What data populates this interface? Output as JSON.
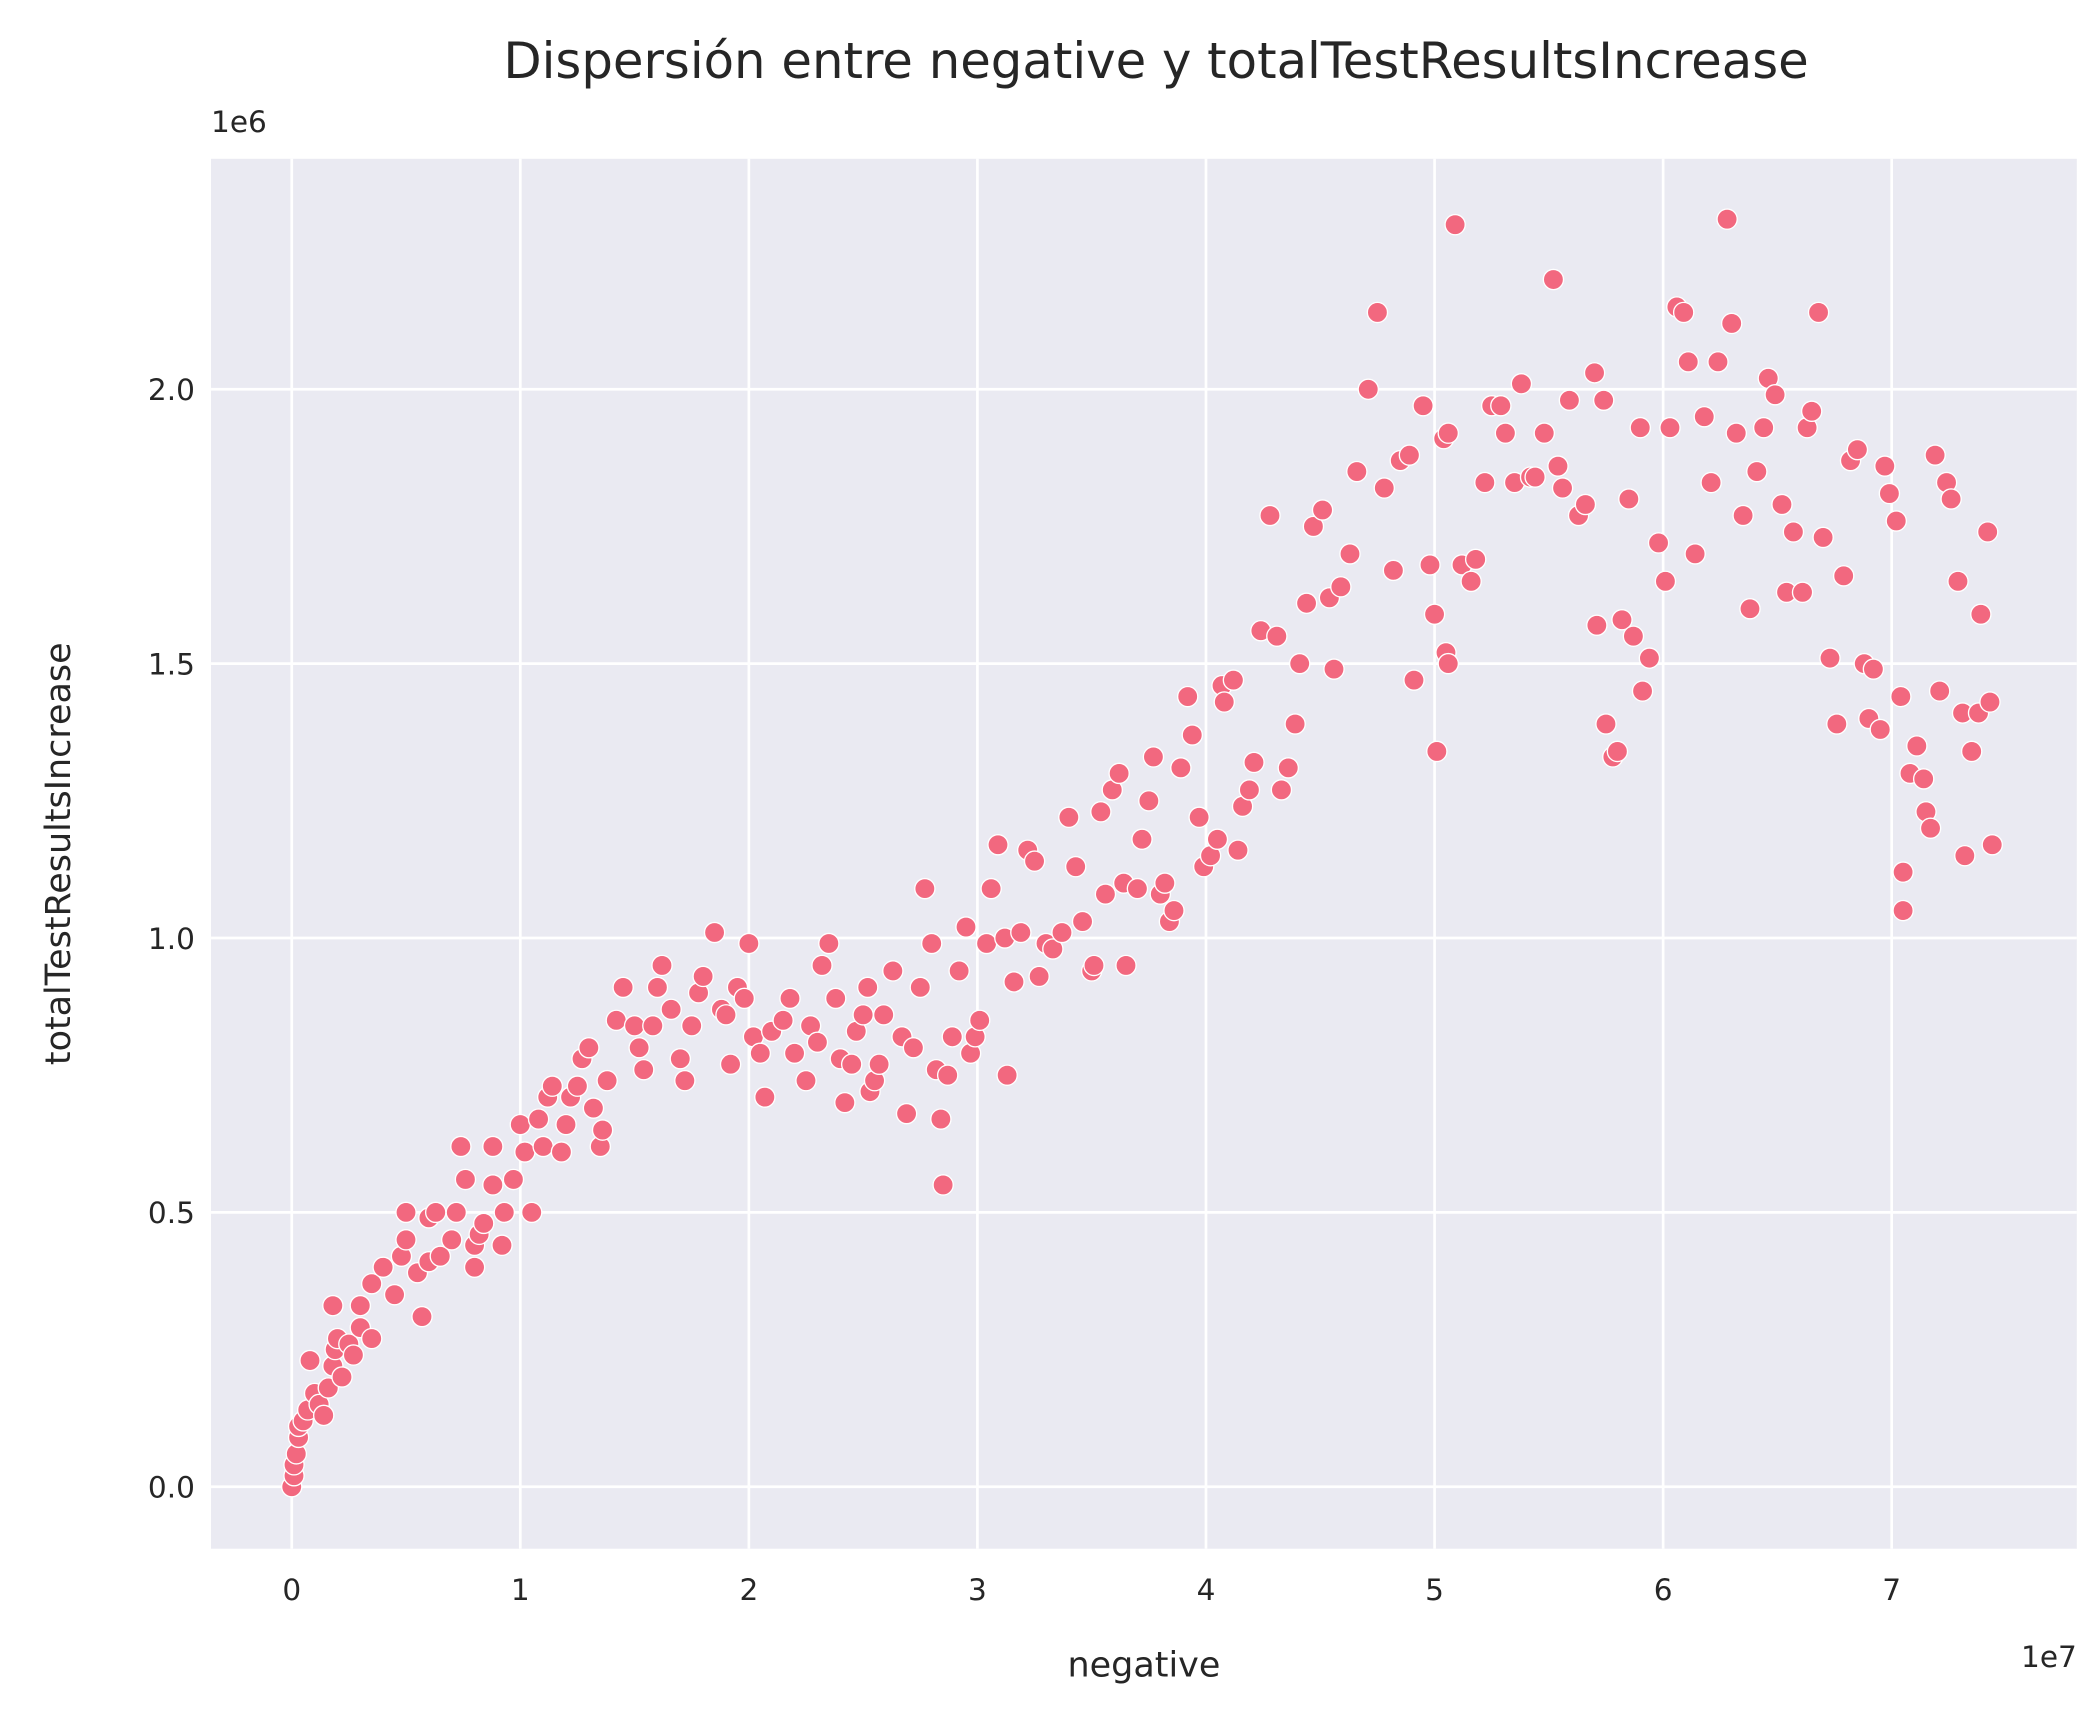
{
  "chart_data": {
    "type": "scatter",
    "title": "Dispersión entre negative y totalTestResultsIncrease",
    "x_label": "negative",
    "y_label": "totalTestResultsIncrease",
    "x_offset_label": "1e7",
    "y_offset_label": "1e6",
    "color": "#f2687f",
    "grid": true,
    "xlim": [
      -3530000,
      78100000
    ],
    "ylim": [
      -113000,
      2420000
    ],
    "xticks": [
      0,
      {
        "value": 10000000,
        "label": "1"
      },
      {
        "value": 20000000,
        "label": "2"
      },
      {
        "value": 30000000,
        "label": "3"
      },
      {
        "value": 40000000,
        "label": "4"
      },
      {
        "value": 50000000,
        "label": "5"
      },
      {
        "value": 60000000,
        "label": "6"
      },
      {
        "value": 70000000,
        "label": "7"
      }
    ],
    "yticks": [
      {
        "value": 0,
        "label": "0.0"
      },
      {
        "value": 500000,
        "label": "0.5"
      },
      {
        "value": 1000000,
        "label": "1.0"
      },
      {
        "value": 1500000,
        "label": "1.5"
      },
      {
        "value": 2000000,
        "label": "2.0"
      }
    ],
    "x": [
      0,
      100000,
      100000,
      200000,
      300000,
      300000,
      500000,
      700000,
      800000,
      1000000,
      1200000,
      1400000,
      1600000,
      1800000,
      1800000,
      1900000,
      2000000,
      2200000,
      2500000,
      2700000,
      3000000,
      3000000,
      3500000,
      3500000,
      4000000,
      4500000,
      4800000,
      5000000,
      5000000,
      5500000,
      5700000,
      6000000,
      6000000,
      6300000,
      6500000,
      7000000,
      7200000,
      7400000,
      7600000,
      8000000,
      8000000,
      8200000,
      8400000,
      8800000,
      8800000,
      9200000,
      9300000,
      9700000,
      10000000,
      10200000,
      10500000,
      10800000,
      11000000,
      11200000,
      11400000,
      11800000,
      12000000,
      12200000,
      12500000,
      12700000,
      13000000,
      13200000,
      13500000,
      13600000,
      13800000,
      14200000,
      14500000,
      15000000,
      15200000,
      15400000,
      15800000,
      16000000,
      16200000,
      16600000,
      17000000,
      17200000,
      17500000,
      17800000,
      18000000,
      18500000,
      18800000,
      19000000,
      19200000,
      19500000,
      19800000,
      20000000,
      20200000,
      20500000,
      20700000,
      21000000,
      21500000,
      21800000,
      22000000,
      22500000,
      22700000,
      23000000,
      23200000,
      23500000,
      23800000,
      24000000,
      24200000,
      24500000,
      24700000,
      25000000,
      25200000,
      25300000,
      25500000,
      25700000,
      25900000,
      26300000,
      26700000,
      26900000,
      27200000,
      27500000,
      27700000,
      28000000,
      28200000,
      28400000,
      28500000,
      28700000,
      28900000,
      29200000,
      29500000,
      29700000,
      29900000,
      30100000,
      30400000,
      30600000,
      30900000,
      31200000,
      31300000,
      31600000,
      31900000,
      32200000,
      32500000,
      32700000,
      33000000,
      33300000,
      33700000,
      34000000,
      34300000,
      34600000,
      35000000,
      35100000,
      35400000,
      35600000,
      35900000,
      36200000,
      36400000,
      36500000,
      37000000,
      37200000,
      37500000,
      37700000,
      38000000,
      38200000,
      38400000,
      38600000,
      38900000,
      39200000,
      39400000,
      39700000,
      39900000,
      40200000,
      40500000,
      40700000,
      40800000,
      41200000,
      41400000,
      41600000,
      41900000,
      42100000,
      42400000,
      42800000,
      43100000,
      43300000,
      43600000,
      43900000,
      44100000,
      44400000,
      44700000,
      45100000,
      45400000,
      45600000,
      45900000,
      46300000,
      46600000,
      47100000,
      47500000,
      47800000,
      48200000,
      48500000,
      48900000,
      49100000,
      49500000,
      49800000,
      50000000,
      50100000,
      50400000,
      50500000,
      50600000,
      50600000,
      50900000,
      51200000,
      51600000,
      51800000,
      52200000,
      52500000,
      52900000,
      53100000,
      53500000,
      53800000,
      54200000,
      54400000,
      54800000,
      55200000,
      55400000,
      55600000,
      55900000,
      56300000,
      56600000,
      57000000,
      57100000,
      57400000,
      57500000,
      57800000,
      58000000,
      58200000,
      58500000,
      58700000,
      59000000,
      59100000,
      59400000,
      59800000,
      60100000,
      60300000,
      60600000,
      60900000,
      61100000,
      61400000,
      61800000,
      62100000,
      62400000,
      62800000,
      63000000,
      63200000,
      63500000,
      63800000,
      64100000,
      64400000,
      64600000,
      64900000,
      65200000,
      65400000,
      65700000,
      66100000,
      66300000,
      66500000,
      66800000,
      67000000,
      67300000,
      67600000,
      67900000,
      68200000,
      68500000,
      68800000,
      69000000,
      69200000,
      69500000,
      69700000,
      69900000,
      70200000,
      70400000,
      70500000,
      70500000,
      70800000,
      71100000,
      71400000,
      71500000,
      71700000,
      71900000,
      72100000,
      72400000,
      72600000,
      72900000,
      73100000,
      73200000,
      73500000,
      73800000,
      73900000,
      74200000,
      74300000,
      74400000
    ],
    "values": [
      0,
      20000,
      40000,
      60000,
      90000,
      110000,
      120000,
      140000,
      230000,
      170000,
      150000,
      130000,
      180000,
      330000,
      220000,
      250000,
      270000,
      200000,
      260000,
      240000,
      330000,
      290000,
      270000,
      370000,
      400000,
      350000,
      420000,
      450000,
      500000,
      390000,
      310000,
      410000,
      490000,
      500000,
      420000,
      450000,
      500000,
      620000,
      560000,
      440000,
      400000,
      460000,
      480000,
      620000,
      550000,
      440000,
      500000,
      560000,
      660000,
      610000,
      500000,
      670000,
      620000,
      710000,
      730000,
      610000,
      660000,
      710000,
      730000,
      780000,
      800000,
      690000,
      620000,
      650000,
      740000,
      850000,
      910000,
      840000,
      800000,
      760000,
      840000,
      910000,
      950000,
      870000,
      780000,
      740000,
      840000,
      900000,
      930000,
      1010000,
      870000,
      860000,
      770000,
      910000,
      890000,
      990000,
      820000,
      790000,
      710000,
      830000,
      850000,
      890000,
      790000,
      740000,
      840000,
      810000,
      950000,
      990000,
      890000,
      780000,
      700000,
      770000,
      830000,
      860000,
      910000,
      720000,
      740000,
      770000,
      860000,
      940000,
      820000,
      680000,
      800000,
      910000,
      1090000,
      990000,
      760000,
      670000,
      550000,
      750000,
      820000,
      940000,
      1020000,
      790000,
      820000,
      850000,
      990000,
      1090000,
      1170000,
      1000000,
      750000,
      920000,
      1010000,
      1160000,
      1140000,
      930000,
      990000,
      980000,
      1010000,
      1220000,
      1130000,
      1030000,
      940000,
      950000,
      1230000,
      1080000,
      1270000,
      1300000,
      1100000,
      950000,
      1090000,
      1180000,
      1250000,
      1330000,
      1080000,
      1100000,
      1030000,
      1050000,
      1310000,
      1440000,
      1370000,
      1220000,
      1130000,
      1150000,
      1180000,
      1460000,
      1430000,
      1470000,
      1160000,
      1240000,
      1270000,
      1320000,
      1560000,
      1770000,
      1550000,
      1270000,
      1310000,
      1390000,
      1500000,
      1610000,
      1750000,
      1780000,
      1620000,
      1490000,
      1640000,
      1700000,
      1850000,
      2000000,
      2140000,
      1820000,
      1670000,
      1870000,
      1880000,
      1470000,
      1970000,
      1680000,
      1590000,
      1340000,
      1910000,
      1520000,
      1500000,
      1920000,
      2300000,
      1680000,
      1650000,
      1690000,
      1830000,
      1970000,
      1970000,
      1920000,
      1830000,
      2010000,
      1840000,
      1840000,
      1920000,
      2200000,
      1860000,
      1820000,
      1980000,
      1770000,
      1790000,
      2030000,
      1570000,
      1980000,
      1390000,
      1330000,
      1340000,
      1580000,
      1800000,
      1550000,
      1930000,
      1450000,
      1510000,
      1720000,
      1650000,
      1930000,
      2150000,
      2140000,
      2050000,
      1700000,
      1950000,
      1830000,
      2050000,
      2310000,
      2120000,
      1920000,
      1770000,
      1600000,
      1850000,
      1930000,
      2020000,
      1990000,
      1790000,
      1630000,
      1740000,
      1630000,
      1930000,
      1960000,
      2140000,
      1730000,
      1510000,
      1390000,
      1660000,
      1870000,
      1890000,
      1500000,
      1400000,
      1490000,
      1380000,
      1860000,
      1810000,
      1760000,
      1440000,
      1120000,
      1050000,
      1300000,
      1350000,
      1290000,
      1230000,
      1200000,
      1880000,
      1450000,
      1830000,
      1800000,
      1650000,
      1410000,
      1150000,
      1340000,
      1410000,
      1590000,
      1740000,
      1430000,
      1170000
    ]
  }
}
